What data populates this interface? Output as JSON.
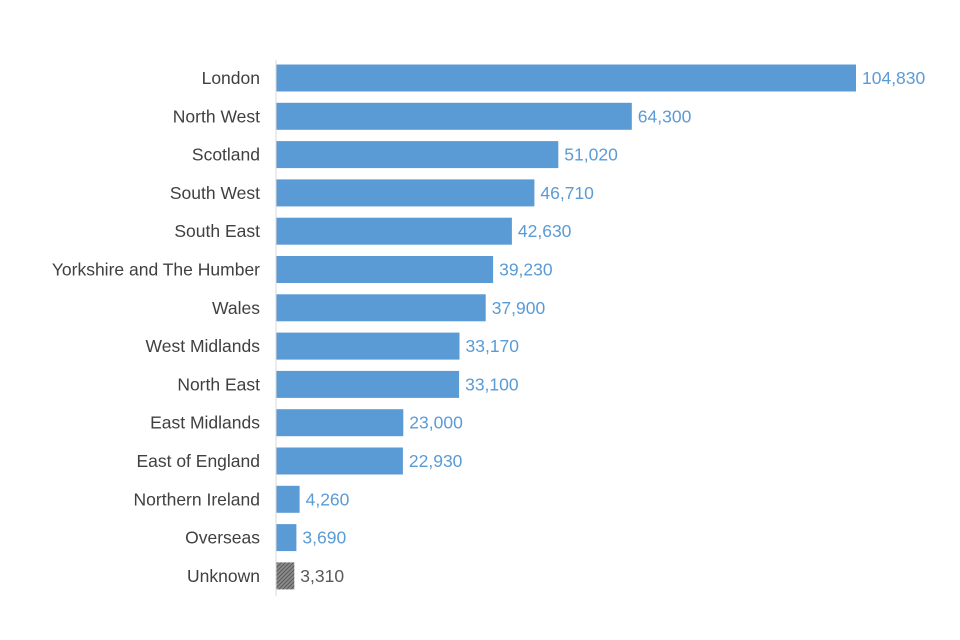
{
  "chart_data": {
    "type": "bar",
    "orientation": "horizontal",
    "title": "",
    "xlabel": "",
    "ylabel": "",
    "categories": [
      "London",
      "North West",
      "Scotland",
      "South West",
      "South East",
      "Yorkshire and The Humber",
      "Wales",
      "West Midlands",
      "North East",
      "East Midlands",
      "East of England",
      "Northern Ireland",
      "Overseas",
      "Unknown"
    ],
    "values": [
      104830,
      64300,
      51020,
      46710,
      42630,
      39230,
      37900,
      33170,
      33100,
      23000,
      22930,
      4260,
      3690,
      3310
    ],
    "value_labels": [
      "104,830",
      "64,300",
      "51,020",
      "46,710",
      "42,630",
      "39,230",
      "37,900",
      "33,170",
      "33,100",
      "23,000",
      "22,930",
      "4,260",
      "3,690",
      "3,310"
    ],
    "xlim": [
      0,
      105000
    ],
    "grid": false,
    "legend": "none",
    "colors": {
      "bar": "#5b9bd5",
      "bar_unknown": "#7f7f7f",
      "value_label": "#5b9bd5",
      "value_label_unknown": "#595959",
      "category_label": "#404040",
      "axis_line": "#d9d9d9"
    },
    "special_bars": {
      "Unknown": "hatched-grey"
    }
  }
}
